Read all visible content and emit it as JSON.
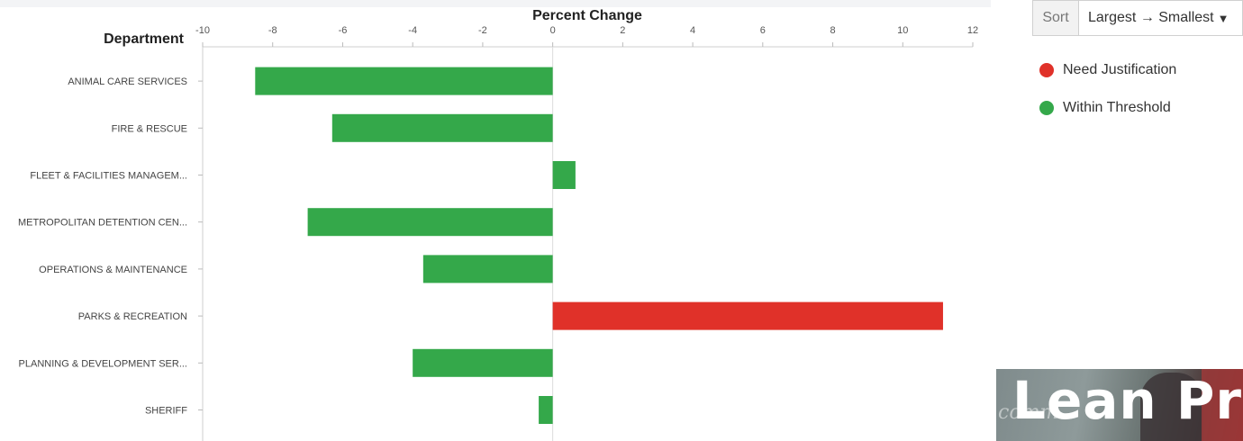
{
  "chart_data": {
    "type": "bar",
    "orientation": "horizontal",
    "title": "Percent Change",
    "ylabel": "Department",
    "xlim": [
      -10,
      12
    ],
    "xticks": [
      -10,
      -8,
      -6,
      -4,
      -2,
      0,
      2,
      4,
      6,
      8,
      10,
      12
    ],
    "grid": false,
    "categories": [
      "ANIMAL CARE SERVICES",
      "FIRE & RESCUE",
      "FLEET & FACILITIES MANAGEM...",
      "METROPOLITAN DETENTION CEN...",
      "OPERATIONS & MAINTENANCE",
      "PARKS & RECREATION",
      "PLANNING & DEVELOPMENT SER...",
      "SHERIFF"
    ],
    "values": [
      -8.5,
      -6.3,
      0.65,
      -7.0,
      -3.7,
      11.15,
      -4.0,
      -0.4
    ],
    "status": [
      "Within Threshold",
      "Within Threshold",
      "Within Threshold",
      "Within Threshold",
      "Within Threshold",
      "Need Justification",
      "Within Threshold",
      "Within Threshold"
    ],
    "legend_position": "right",
    "legend": [
      {
        "label": "Need Justification",
        "color": "#e03129"
      },
      {
        "label": "Within Threshold",
        "color": "#34a84a"
      }
    ]
  },
  "controls": {
    "sort_label": "Sort",
    "sort_value": "Largest → Smallest",
    "sort_chevron_icon": "chevron-down-icon"
  },
  "thumbnail": {
    "title": "Lean Pro",
    "script": "comm"
  }
}
